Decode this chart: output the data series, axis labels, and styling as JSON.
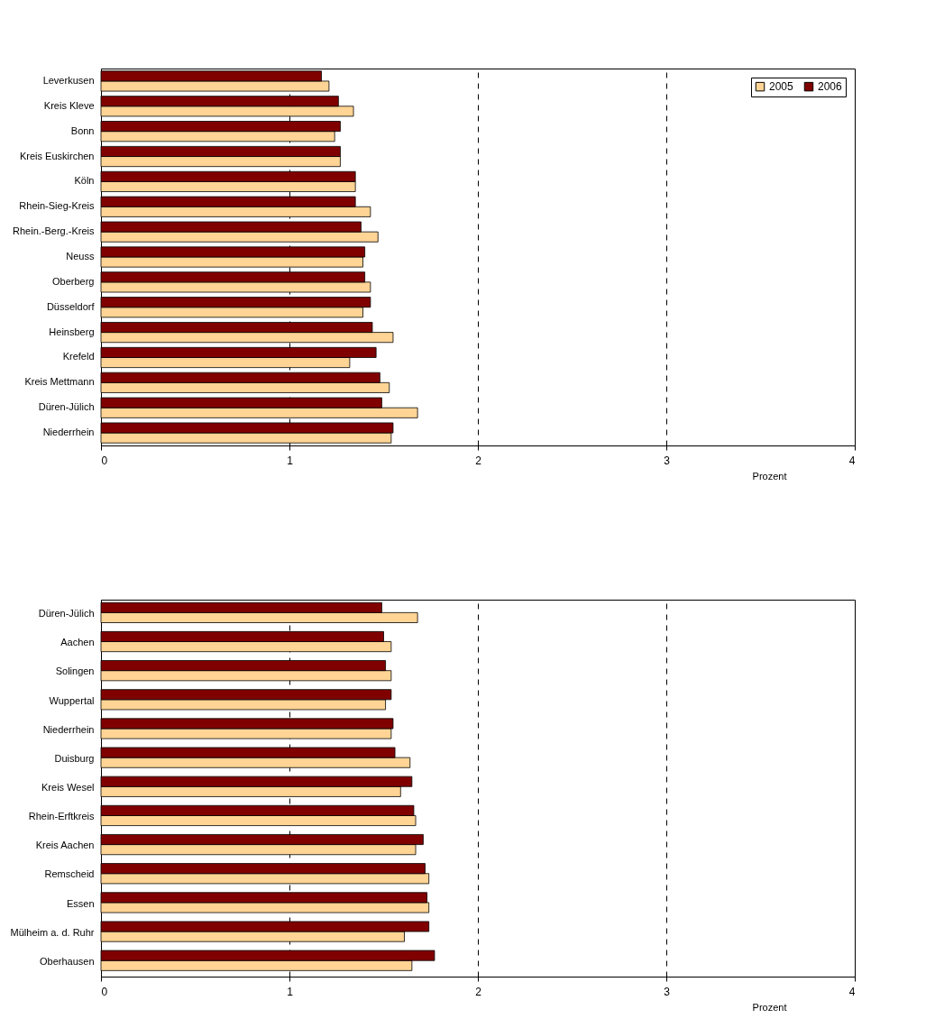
{
  "chart_data": [
    {
      "type": "bar",
      "orientation": "horizontal",
      "xlabel": "Prozent",
      "categories": [
        "Leverkusen",
        "Kreis Kleve",
        "Bonn",
        "Kreis Euskirchen",
        "Köln",
        "Rhein-Sieg-Kreis",
        "Rhein.-Berg.-Kreis",
        "Neuss",
        "Oberberg",
        "Düsseldorf",
        "Heinsberg",
        "Krefeld",
        "Kreis Mettmann",
        "Düren-Jülich",
        "Niederrhein"
      ],
      "series": [
        {
          "name": "2005",
          "color": "#ffd495",
          "values": [
            1.21,
            1.34,
            1.24,
            1.27,
            1.35,
            1.43,
            1.47,
            1.39,
            1.43,
            1.39,
            1.55,
            1.32,
            1.53,
            1.68,
            1.54
          ]
        },
        {
          "name": "2006",
          "color": "#800000",
          "values": [
            1.17,
            1.26,
            1.27,
            1.27,
            1.35,
            1.35,
            1.38,
            1.4,
            1.4,
            1.43,
            1.44,
            1.46,
            1.48,
            1.49,
            1.55
          ]
        }
      ],
      "xlim": [
        0,
        4
      ],
      "xticks": [
        0,
        1,
        2,
        3,
        4
      ],
      "grid": "x",
      "legend": "top right"
    },
    {
      "type": "bar",
      "orientation": "horizontal",
      "xlabel": "Prozent",
      "categories": [
        "Düren-Jülich",
        "Aachen",
        "Solingen",
        "Wuppertal",
        "Niederrhein",
        "Duisburg",
        "Kreis Wesel",
        "Rhein-Erftkreis",
        "Kreis Aachen",
        "Remscheid",
        "Essen",
        "Mülheim a. d. Ruhr",
        "Oberhausen"
      ],
      "series": [
        {
          "name": "2005",
          "color": "#ffd495",
          "values": [
            1.68,
            1.54,
            1.54,
            1.51,
            1.54,
            1.64,
            1.59,
            1.67,
            1.67,
            1.74,
            1.74,
            1.61,
            1.65
          ]
        },
        {
          "name": "2006",
          "color": "#800000",
          "values": [
            1.49,
            1.5,
            1.51,
            1.54,
            1.55,
            1.56,
            1.65,
            1.66,
            1.71,
            1.72,
            1.73,
            1.74,
            1.77
          ]
        }
      ],
      "xlim": [
        0,
        4
      ],
      "xticks": [
        0,
        1,
        2,
        3,
        4
      ],
      "grid": "x",
      "legend": "top right"
    }
  ]
}
